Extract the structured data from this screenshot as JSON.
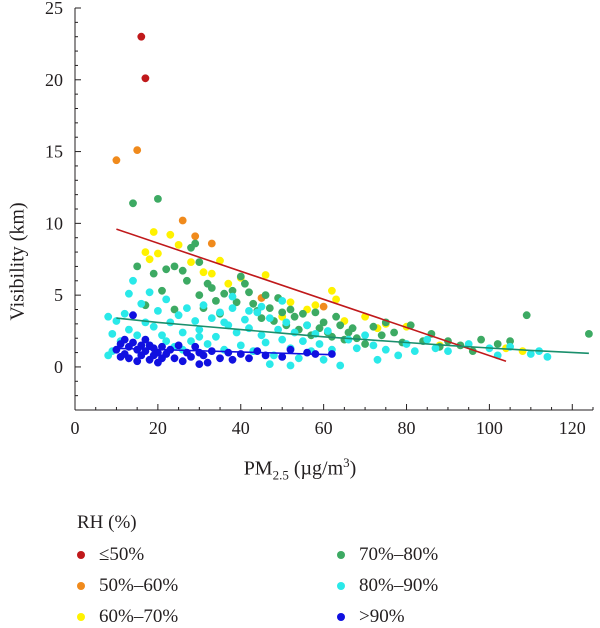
{
  "chart_data": {
    "type": "scatter",
    "title": "",
    "xlabel_main": "PM",
    "xlabel_sub": "2.5",
    "xlabel_unit": " (µg/m",
    "xlabel_sup": "3",
    "xlabel_end": ")",
    "ylabel": "Visibility (km)",
    "xlim": [
      0,
      125
    ],
    "ylim": [
      -3,
      25
    ],
    "xticks": [
      0,
      20,
      40,
      60,
      80,
      100,
      120
    ],
    "yticks": [
      0,
      5,
      10,
      15,
      20,
      25
    ],
    "legend_title": "RH (%)",
    "series": [
      {
        "name": "≤50%",
        "color": "#c0191b",
        "points": [
          [
            16,
            23
          ],
          [
            17,
            20.1
          ]
        ]
      },
      {
        "name": "50%–60%",
        "color": "#f08a1c",
        "points": [
          [
            10,
            14.4
          ],
          [
            15,
            15.1
          ],
          [
            26,
            10.2
          ],
          [
            29,
            9.1
          ],
          [
            33,
            8.6
          ],
          [
            45,
            4.8
          ],
          [
            60,
            4.2
          ]
        ]
      },
      {
        "name": "60%–70%",
        "color": "#fff200",
        "points": [
          [
            17,
            8
          ],
          [
            18,
            7.5
          ],
          [
            19,
            9.4
          ],
          [
            20,
            7.9
          ],
          [
            23,
            9.2
          ],
          [
            25,
            8.5
          ],
          [
            28,
            7.3
          ],
          [
            31,
            6.6
          ],
          [
            33,
            6.5
          ],
          [
            35,
            7.4
          ],
          [
            37,
            5.8
          ],
          [
            40,
            6.2
          ],
          [
            46,
            6.4
          ],
          [
            50,
            3.5
          ],
          [
            52,
            4.5
          ],
          [
            56,
            4
          ],
          [
            58,
            4.3
          ],
          [
            62,
            5.3
          ],
          [
            63,
            4.7
          ],
          [
            65,
            3.2
          ],
          [
            70,
            3.5
          ],
          [
            73,
            2.7
          ],
          [
            75,
            3
          ],
          [
            80,
            2.8
          ],
          [
            88,
            1.5
          ],
          [
            104,
            1.3
          ],
          [
            108,
            1.1
          ]
        ]
      },
      {
        "name": "70%–80%",
        "color": "#3daa63",
        "points": [
          [
            14,
            11.4
          ],
          [
            20,
            11.7
          ],
          [
            15,
            7
          ],
          [
            17,
            4.3
          ],
          [
            19,
            6.5
          ],
          [
            21,
            5.3
          ],
          [
            22,
            6.8
          ],
          [
            24,
            7
          ],
          [
            24,
            4
          ],
          [
            26,
            6.7
          ],
          [
            27,
            6
          ],
          [
            28,
            8.3
          ],
          [
            29,
            8.6
          ],
          [
            30,
            7.3
          ],
          [
            30,
            5
          ],
          [
            31,
            4.1
          ],
          [
            32,
            5.8
          ],
          [
            33,
            5.5
          ],
          [
            34,
            4.6
          ],
          [
            35,
            3.7
          ],
          [
            36,
            5.1
          ],
          [
            38,
            5.3
          ],
          [
            39,
            4.5
          ],
          [
            40,
            6.3
          ],
          [
            41,
            5.8
          ],
          [
            42,
            5.2
          ],
          [
            43,
            4.4
          ],
          [
            44,
            3.9
          ],
          [
            45,
            3.4
          ],
          [
            46,
            5
          ],
          [
            47,
            4.1
          ],
          [
            48,
            3.2
          ],
          [
            49,
            4.8
          ],
          [
            50,
            3.8
          ],
          [
            51,
            2.9
          ],
          [
            52,
            4
          ],
          [
            53,
            3.5
          ],
          [
            54,
            2.6
          ],
          [
            55,
            3.7
          ],
          [
            56,
            2.9
          ],
          [
            57,
            2.2
          ],
          [
            58,
            3.8
          ],
          [
            59,
            2.7
          ],
          [
            60,
            3.1
          ],
          [
            61,
            2.4
          ],
          [
            62,
            2.1
          ],
          [
            63,
            3.5
          ],
          [
            64,
            2.9
          ],
          [
            65,
            1.9
          ],
          [
            66,
            2.4
          ],
          [
            67,
            2.7
          ],
          [
            68,
            2
          ],
          [
            70,
            1.6
          ],
          [
            72,
            2.8
          ],
          [
            74,
            2.2
          ],
          [
            75,
            3.1
          ],
          [
            77,
            2.4
          ],
          [
            79,
            1.7
          ],
          [
            81,
            2.9
          ],
          [
            84,
            1.8
          ],
          [
            86,
            2.3
          ],
          [
            88,
            1.4
          ],
          [
            90,
            1.8
          ],
          [
            93,
            1.5
          ],
          [
            96,
            1.1
          ],
          [
            98,
            1.9
          ],
          [
            102,
            1.6
          ],
          [
            105,
            1.8
          ],
          [
            109,
            3.6
          ],
          [
            124,
            2.3
          ]
        ]
      },
      {
        "name": "80%–90%",
        "color": "#2ae9e9",
        "points": [
          [
            8,
            3.5
          ],
          [
            9,
            2.3
          ],
          [
            10,
            3.2
          ],
          [
            11,
            1.8
          ],
          [
            12,
            3.7
          ],
          [
            13,
            2.6
          ],
          [
            13,
            5.1
          ],
          [
            14,
            6
          ],
          [
            15,
            2.2
          ],
          [
            16,
            4.4
          ],
          [
            17,
            3.1
          ],
          [
            18,
            1.5
          ],
          [
            18,
            5.2
          ],
          [
            19,
            2.8
          ],
          [
            20,
            3.9
          ],
          [
            21,
            2.2
          ],
          [
            22,
            4.7
          ],
          [
            23,
            3.1
          ],
          [
            24,
            1.4
          ],
          [
            25,
            3.6
          ],
          [
            26,
            2.4
          ],
          [
            27,
            4.1
          ],
          [
            28,
            1.8
          ],
          [
            29,
            3.2
          ],
          [
            30,
            2.6
          ],
          [
            31,
            4.3
          ],
          [
            32,
            1.6
          ],
          [
            33,
            3.4
          ],
          [
            34,
            2.1
          ],
          [
            35,
            3.8
          ],
          [
            36,
            1.2
          ],
          [
            37,
            2.9
          ],
          [
            38,
            4.1
          ],
          [
            39,
            2.4
          ],
          [
            40,
            1.5
          ],
          [
            41,
            3.3
          ],
          [
            42,
            2.7
          ],
          [
            43,
            1.1
          ],
          [
            44,
            3.8
          ],
          [
            45,
            2.2
          ],
          [
            46,
            1.7
          ],
          [
            47,
            3.4
          ],
          [
            48,
            0.8
          ],
          [
            49,
            2.6
          ],
          [
            50,
            1.9
          ],
          [
            51,
            3.1
          ],
          [
            52,
            1.3
          ],
          [
            53,
            2.4
          ],
          [
            54,
            0.6
          ],
          [
            55,
            1.8
          ],
          [
            56,
            2.9
          ],
          [
            57,
            1.1
          ],
          [
            58,
            2.3
          ],
          [
            59,
            1.6
          ],
          [
            60,
            0.5
          ],
          [
            61,
            2.5
          ],
          [
            62,
            1.2
          ],
          [
            64,
            0.1
          ],
          [
            66,
            1.9
          ],
          [
            68,
            1.3
          ],
          [
            70,
            2.2
          ],
          [
            72,
            1.5
          ],
          [
            73,
            0.5
          ],
          [
            75,
            1.2
          ],
          [
            78,
            0.8
          ],
          [
            80,
            1.6
          ],
          [
            82,
            1.1
          ],
          [
            85,
            1.9
          ],
          [
            87,
            1.3
          ],
          [
            90,
            1.1
          ],
          [
            95,
            1.6
          ],
          [
            100,
            1.3
          ],
          [
            102,
            0.8
          ],
          [
            105,
            1.4
          ],
          [
            110,
            0.9
          ],
          [
            114,
            0.7
          ],
          [
            112,
            1.1
          ],
          [
            8,
            0.8
          ],
          [
            9,
            1.1
          ],
          [
            47,
            0.2
          ],
          [
            52,
            0.1
          ],
          [
            45,
            4.2
          ],
          [
            50,
            4.6
          ],
          [
            38,
            4.9
          ],
          [
            42,
            3.9
          ],
          [
            36,
            3.1
          ],
          [
            30,
            2.1
          ],
          [
            26,
            1.2
          ],
          [
            22,
            1.8
          ]
        ]
      },
      {
        "name": ">90%",
        "color": "#1010e0",
        "points": [
          [
            10,
            1.2
          ],
          [
            11,
            1.6
          ],
          [
            11,
            0.7
          ],
          [
            12,
            1.9
          ],
          [
            12,
            0.9
          ],
          [
            13,
            1.4
          ],
          [
            13,
            0.6
          ],
          [
            14,
            1.7
          ],
          [
            14,
            3.6
          ],
          [
            15,
            1.2
          ],
          [
            15,
            0.4
          ],
          [
            16,
            1.5
          ],
          [
            16,
            0.8
          ],
          [
            17,
            1.9
          ],
          [
            17,
            1.1
          ],
          [
            18,
            0.5
          ],
          [
            18,
            1.5
          ],
          [
            19,
            0.8
          ],
          [
            19,
            1.3
          ],
          [
            20,
            0.3
          ],
          [
            20,
            1
          ],
          [
            21,
            0.6
          ],
          [
            21,
            1.4
          ],
          [
            22,
            0.9
          ],
          [
            23,
            1.2
          ],
          [
            24,
            0.6
          ],
          [
            25,
            1.5
          ],
          [
            26,
            0.4
          ],
          [
            27,
            1
          ],
          [
            28,
            0.7
          ],
          [
            29,
            1.4
          ],
          [
            30,
            0.2
          ],
          [
            30,
            1
          ],
          [
            31,
            0.8
          ],
          [
            32,
            0.3
          ],
          [
            33,
            1.1
          ],
          [
            35,
            0.6
          ],
          [
            37,
            1
          ],
          [
            38,
            0.5
          ],
          [
            40,
            0.9
          ],
          [
            42,
            0.6
          ],
          [
            44,
            1.1
          ],
          [
            46,
            0.8
          ],
          [
            50,
            0.7
          ],
          [
            52,
            1.2
          ],
          [
            56,
            1
          ],
          [
            58,
            0.9
          ],
          [
            62,
            0.9
          ]
        ]
      }
    ],
    "fit_lines": [
      {
        "color": "#c0191b",
        "x": [
          10,
          104
        ],
        "y": [
          9.6,
          0.4
        ]
      },
      {
        "color": "#1a8f6c",
        "x": [
          10,
          20,
          30,
          40,
          50,
          60,
          70,
          80,
          90,
          100,
          110,
          124
        ],
        "y": [
          3.4,
          3.1,
          2.85,
          2.6,
          2.35,
          2.1,
          1.9,
          1.7,
          1.5,
          1.32,
          1.15,
          0.95
        ]
      },
      {
        "color": "#1010e0",
        "x": [
          10,
          62
        ],
        "y": [
          1.3,
          0.85
        ]
      }
    ]
  }
}
